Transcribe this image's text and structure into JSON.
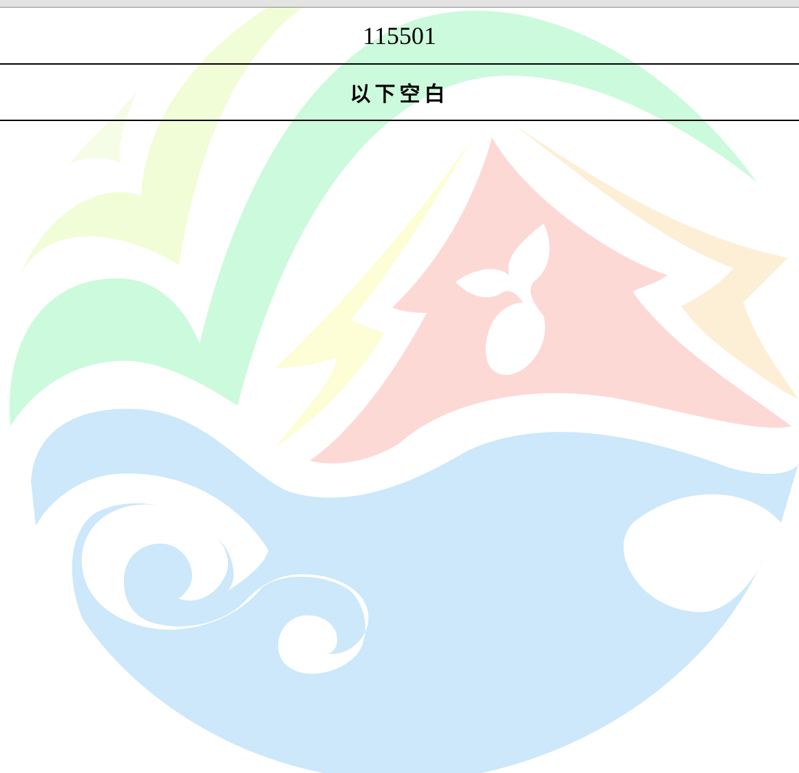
{
  "table": {
    "rows": [
      [
        "115501"
      ],
      [
        "以下空白"
      ]
    ]
  }
}
